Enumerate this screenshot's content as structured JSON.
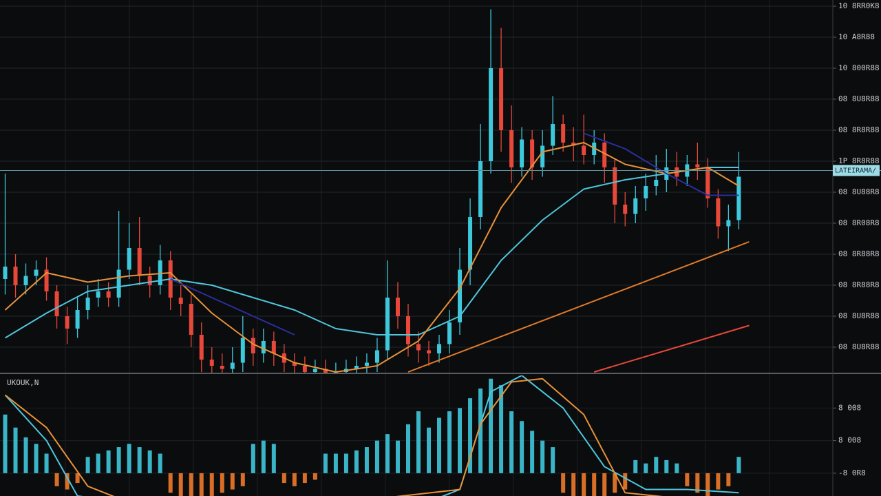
{
  "chart_data": [
    {
      "type": "candlestick",
      "x": [
        0,
        1,
        2,
        3,
        4,
        5,
        6,
        7,
        8,
        9,
        10,
        11,
        12,
        13,
        14,
        15,
        16,
        17,
        18,
        19,
        20,
        21,
        22,
        23,
        24,
        25,
        26,
        27,
        28,
        29,
        30,
        31,
        32,
        33,
        34,
        35,
        36,
        37,
        38,
        39,
        40,
        41,
        42,
        43,
        44,
        45,
        46,
        47,
        48,
        49,
        50,
        51,
        52,
        53,
        54,
        55,
        56,
        57,
        58,
        59,
        60,
        61,
        62,
        63,
        64,
        65,
        66,
        67,
        68,
        69,
        70,
        71
      ],
      "open": [
        3.2,
        3.6,
        3.0,
        3.3,
        3.5,
        2.8,
        2.0,
        1.6,
        2.2,
        2.6,
        2.8,
        2.6,
        3.5,
        4.2,
        3.3,
        3.0,
        3.8,
        2.6,
        2.4,
        1.4,
        0.6,
        0.4,
        0.3,
        0.5,
        1.3,
        0.8,
        1.2,
        0.8,
        0.5,
        0.4,
        0.2,
        0.3,
        0.1,
        0.2,
        0.3,
        0.4,
        0.5,
        0.9,
        2.6,
        2.0,
        1.1,
        0.9,
        0.8,
        1.1,
        1.8,
        3.5,
        5.2,
        7.0,
        10.0,
        8.0,
        6.8,
        7.7,
        6.8,
        7.5,
        8.2,
        7.6,
        7.5,
        7.2,
        7.6,
        6.8,
        5.6,
        5.3,
        5.8,
        6.2,
        6.4,
        6.8,
        6.5,
        6.9,
        6.8,
        5.8,
        4.9,
        5.1
      ],
      "close": [
        3.6,
        3.0,
        3.3,
        3.5,
        2.8,
        2.0,
        1.6,
        2.2,
        2.6,
        2.8,
        2.6,
        3.5,
        4.2,
        3.3,
        3.0,
        3.8,
        2.6,
        2.4,
        1.4,
        0.6,
        0.4,
        0.3,
        0.5,
        1.3,
        0.8,
        1.2,
        0.8,
        0.5,
        0.4,
        0.2,
        0.3,
        0.1,
        0.2,
        0.3,
        0.4,
        0.5,
        0.9,
        2.6,
        2.0,
        1.1,
        0.9,
        0.8,
        1.1,
        1.8,
        3.5,
        5.2,
        7.0,
        10.0,
        8.0,
        6.8,
        7.7,
        6.8,
        7.5,
        8.2,
        7.6,
        7.5,
        7.2,
        7.6,
        6.8,
        5.6,
        5.3,
        5.8,
        6.2,
        6.4,
        6.8,
        6.5,
        6.9,
        6.8,
        5.8,
        4.9,
        5.1,
        6.5
      ],
      "high": [
        6.6,
        4.0,
        3.7,
        3.8,
        3.9,
        3.0,
        2.3,
        2.6,
        3.0,
        3.2,
        3.1,
        5.4,
        5.0,
        5.2,
        3.6,
        4.3,
        4.1,
        3.0,
        2.7,
        1.8,
        1.0,
        0.8,
        1.0,
        2.0,
        1.6,
        1.6,
        1.5,
        1.1,
        0.8,
        0.7,
        0.6,
        0.6,
        0.5,
        0.6,
        0.7,
        0.8,
        1.3,
        3.8,
        3.1,
        2.4,
        1.5,
        1.2,
        1.4,
        2.2,
        4.2,
        5.8,
        8.2,
        11.9,
        11.3,
        8.8,
        8.1,
        8.0,
        8.0,
        9.1,
        8.5,
        8.1,
        8.5,
        8.0,
        7.9,
        7.1,
        6.0,
        6.2,
        6.6,
        7.2,
        7.4,
        7.3,
        7.2,
        7.6,
        7.1,
        6.1,
        5.6,
        7.3
      ],
      "low": [
        2.7,
        2.6,
        2.7,
        3.0,
        2.5,
        1.6,
        1.1,
        1.3,
        1.9,
        2.3,
        2.3,
        2.3,
        3.2,
        3.0,
        2.6,
        2.7,
        2.2,
        2.0,
        1.0,
        0.2,
        0.1,
        0.0,
        0.0,
        0.2,
        0.4,
        0.5,
        0.4,
        0.2,
        0.1,
        0.0,
        0.0,
        0.0,
        0.0,
        0.0,
        0.0,
        0.1,
        0.2,
        0.6,
        1.6,
        0.7,
        0.5,
        0.4,
        0.5,
        0.8,
        1.4,
        3.0,
        4.8,
        6.6,
        7.3,
        6.3,
        6.5,
        6.4,
        6.5,
        7.2,
        7.3,
        7.0,
        6.9,
        6.9,
        6.3,
        5.0,
        4.9,
        5.0,
        5.4,
        5.9,
        6.0,
        6.2,
        6.2,
        6.4,
        5.5,
        4.5,
        4.1,
        4.8
      ],
      "up_color": "#3ec8dc",
      "down_color": "#e8483a",
      "xlim": [
        -0.5,
        80.1
      ],
      "ylim": [
        0.2,
        12.2
      ],
      "yticks": [
        {
          "value": 12,
          "label": "10 8RR0K8"
        },
        {
          "value": 11,
          "label": "10 A8R88"
        },
        {
          "value": 10,
          "label": "10 800R88"
        },
        {
          "value": 9,
          "label": "08 8U8R88"
        },
        {
          "value": 8,
          "label": "08 8R8R88"
        },
        {
          "value": 7,
          "label": "1P 8R8R88"
        },
        {
          "value": 6,
          "label": "08 8U88R8"
        },
        {
          "value": 5,
          "label": "08 8R08R8"
        },
        {
          "value": 4,
          "label": "08 8R88R8"
        },
        {
          "value": 3,
          "label": "08 8R88R8"
        },
        {
          "value": 2,
          "label": "08 8U8R88"
        },
        {
          "value": 1,
          "label": "08 8U8R88"
        }
      ],
      "grid": true,
      "price_line": {
        "value": 6.7,
        "label": "LATEIRAMA/"
      },
      "overlays": [
        {
          "color": "#4fc6dc",
          "x": [
            0,
            4,
            8,
            12,
            16,
            20,
            24,
            28,
            32,
            36,
            40,
            44,
            48,
            52,
            56,
            60,
            64,
            68,
            71
          ],
          "values": [
            1.3,
            2.1,
            2.8,
            3.0,
            3.2,
            3.0,
            2.6,
            2.2,
            1.6,
            1.4,
            1.4,
            2.0,
            3.8,
            5.1,
            6.1,
            6.4,
            6.6,
            6.8,
            6.8
          ]
        },
        {
          "color": "#e8923a",
          "x": [
            0,
            4,
            8,
            12,
            16,
            20,
            24,
            28,
            32,
            36,
            40,
            44,
            48,
            52,
            56,
            60,
            64,
            68,
            71
          ],
          "values": [
            2.2,
            3.4,
            3.1,
            3.3,
            3.4,
            2.1,
            1.1,
            0.5,
            0.2,
            0.4,
            1.2,
            2.9,
            5.5,
            7.3,
            7.6,
            6.9,
            6.6,
            6.8,
            6.2
          ]
        },
        {
          "color": "#2a2f9e",
          "x": [
            0,
            4,
            8,
            12,
            16,
            20,
            24,
            28,
            32,
            36,
            40,
            44,
            48,
            52,
            56,
            60,
            64,
            68,
            71
          ],
          "values": [
            null,
            null,
            null,
            null,
            3.2,
            2.6,
            2.0,
            1.4,
            null,
            null,
            null,
            null,
            null,
            null,
            7.9,
            7.4,
            6.6,
            5.9,
            5.9
          ]
        },
        {
          "color": "#e07a2a",
          "x": [
            39,
            72
          ],
          "values": [
            0.2,
            4.4
          ]
        },
        {
          "color": "#e8483a",
          "x": [
            57,
            72
          ],
          "values": [
            0.2,
            1.7
          ]
        }
      ]
    },
    {
      "type": "bar",
      "title": "UKOUK,N",
      "x": [
        0,
        1,
        2,
        3,
        4,
        5,
        6,
        7,
        8,
        9,
        10,
        11,
        12,
        13,
        14,
        15,
        16,
        17,
        18,
        19,
        20,
        21,
        22,
        23,
        24,
        25,
        26,
        27,
        28,
        29,
        30,
        31,
        32,
        33,
        34,
        35,
        36,
        37,
        38,
        39,
        40,
        41,
        42,
        43,
        44,
        45,
        46,
        47,
        48,
        49,
        50,
        51,
        52,
        53,
        54,
        55,
        56,
        57,
        58,
        59,
        60,
        61,
        62,
        63,
        64,
        65,
        66,
        67,
        68,
        69,
        70,
        71
      ],
      "values": [
        1.8,
        1.4,
        1.1,
        0.9,
        0.6,
        -0.4,
        -0.5,
        -0.3,
        0.5,
        0.6,
        0.7,
        0.8,
        0.9,
        0.8,
        0.7,
        0.6,
        -0.6,
        -0.7,
        -0.8,
        -0.7,
        -0.8,
        -0.6,
        -0.5,
        -0.4,
        0.9,
        1.0,
        0.9,
        -0.3,
        -0.4,
        -0.3,
        -0.2,
        0.6,
        0.6,
        0.6,
        0.7,
        0.8,
        1.0,
        1.2,
        1.0,
        1.5,
        1.9,
        1.4,
        1.7,
        1.9,
        2.0,
        2.3,
        2.6,
        2.9,
        2.7,
        1.9,
        1.6,
        1.3,
        1.0,
        0.8,
        -0.6,
        -0.8,
        -0.9,
        -0.8,
        -0.7,
        -0.6,
        -0.5,
        0.4,
        0.3,
        0.5,
        0.4,
        0.3,
        -0.4,
        -0.6,
        -0.7,
        -0.5,
        -0.4,
        0.5
      ],
      "up_color": "#3ec8dc",
      "down_color": "#f07a2a",
      "xlim": [
        -0.5,
        80.1
      ],
      "ylim": [
        -0.7,
        3
      ],
      "yticks": [
        {
          "value": 2,
          "label": "8 008"
        },
        {
          "value": 1,
          "label": "8 008"
        },
        {
          "value": 0,
          "label": "-8 0R8"
        }
      ],
      "overlays": [
        {
          "color": "#4fc6dc",
          "x": [
            0,
            4,
            7,
            12,
            20,
            30,
            40,
            44,
            47,
            50,
            54,
            58,
            62,
            66,
            71
          ],
          "values": [
            2.4,
            1.0,
            -0.7,
            -0.9,
            -1.0,
            -1.0,
            -1.0,
            -0.5,
            2.5,
            3.0,
            2.0,
            0.2,
            -0.5,
            -0.5,
            -0.6
          ]
        },
        {
          "color": "#e8923a",
          "x": [
            0,
            4,
            8,
            12,
            30,
            44,
            46,
            49,
            52,
            56,
            60,
            66,
            71
          ],
          "values": [
            2.4,
            1.4,
            -0.4,
            -0.9,
            -1.0,
            -0.5,
            1.5,
            2.8,
            2.9,
            1.8,
            -0.6,
            -0.8,
            -0.9
          ]
        }
      ]
    }
  ]
}
